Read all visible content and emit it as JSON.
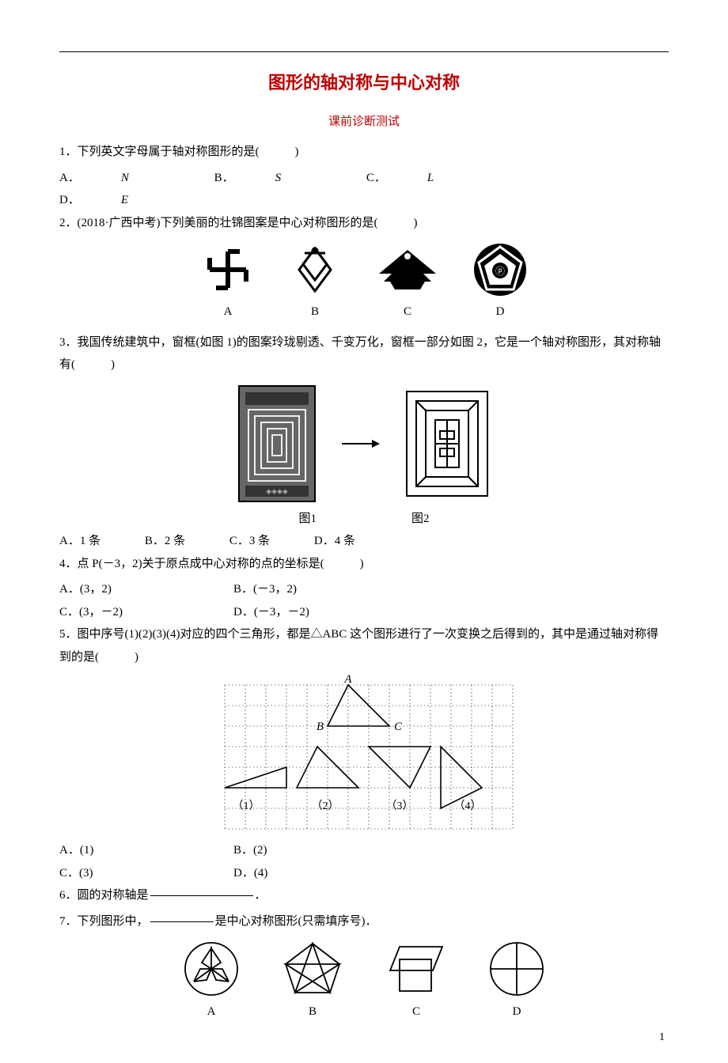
{
  "page": {
    "title": "图形的轴对称与中心对称",
    "subtitle": "课前诊断测试",
    "footer_page": "1"
  },
  "q1": {
    "text": "1．下列英文字母属于轴对称图形的是(　　　)",
    "optA_prefix": "A．",
    "optA_val": "N",
    "optB_prefix": "B．",
    "optB_val": "S",
    "optC_prefix": "C．",
    "optC_val": "L",
    "optD_prefix": "D．",
    "optD_val": "E"
  },
  "q2": {
    "text": "2．(2018·广西中考)下列美丽的壮锦图案是中心对称图形的是(　　　)",
    "labA": "A",
    "labB": "B",
    "labC": "C",
    "labD": "D",
    "colors": {
      "fill_dark": "#1a1a1a",
      "fill_light": "#ffffff"
    }
  },
  "q3": {
    "text_pre": "3．我国传统建筑中，窗框(如图 1)的图案玲珑剔透、千变万化，窗框一部分如图 2，它是一个轴对称图形，其对称轴有(　　　)",
    "fig1_label": "图1",
    "fig2_label": "图2",
    "optA": "A．1 条",
    "optB": "B．2 条",
    "optC": "C．3 条",
    "optD": "D．4 条"
  },
  "q4": {
    "text": "4．点 P(－3，2)关于原点成中心对称的点的坐标是(　　　)",
    "optA": "A．(3，2)",
    "optB": "B．(－3，2)",
    "optC": "C．(3，－2)",
    "optD": "D．(－3，－2)"
  },
  "q5": {
    "text": "5．图中序号(1)(2)(3)(4)对应的四个三角形，都是△ABC 这个图形进行了一次变换之后得到的，其中是通过轴对称得到的是(　　　)",
    "optA": "A．(1)",
    "optB": "B．(2)",
    "optC": "C．(3)",
    "optD": "D．(4)",
    "labelA": "A",
    "labelB": "B",
    "labelC": "C",
    "lab1": "（1）",
    "lab2": "（2）",
    "lab3": "（3）",
    "lab4": "（4）",
    "grid": {
      "cols": 14,
      "rows": 7,
      "spacing": 26
    }
  },
  "q6": {
    "pre": "6．圆的对称轴是",
    "post": "．"
  },
  "q7": {
    "pre": "7．下列图形中，",
    "post": "是中心对称图形(只需填序号)．",
    "labA": "A",
    "labB": "B",
    "labC": "C",
    "labD": "D"
  }
}
